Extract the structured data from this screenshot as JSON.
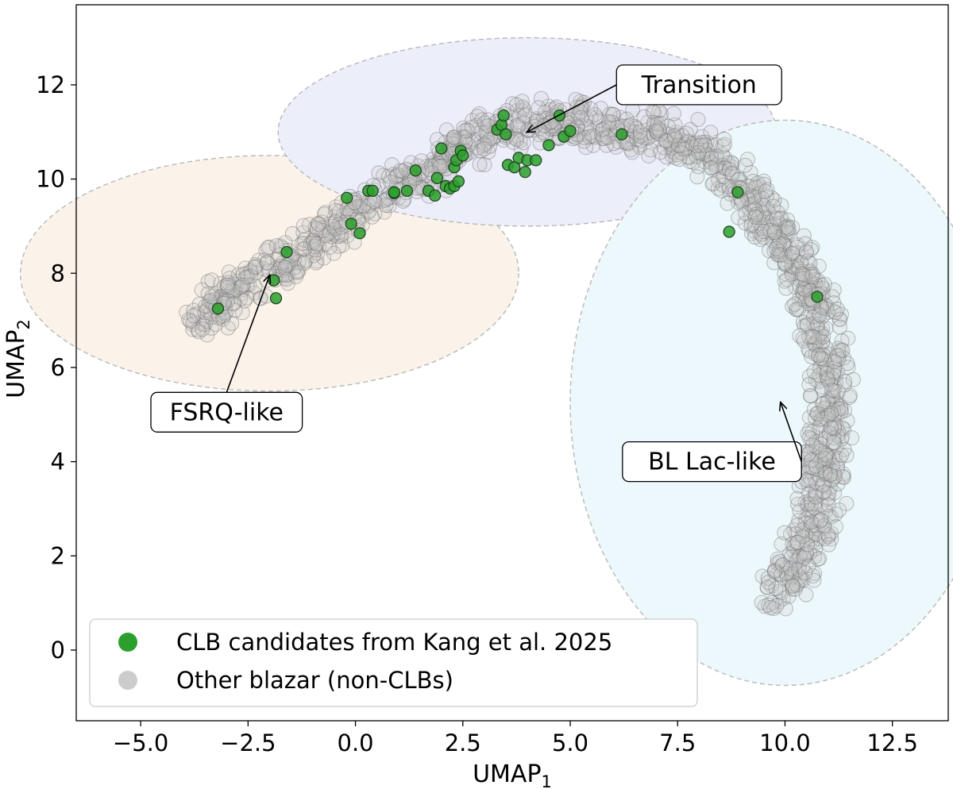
{
  "chart_data": {
    "type": "scatter",
    "title": "",
    "xlabel": "UMAP",
    "xlabel_sub": "1",
    "ylabel": "UMAP",
    "ylabel_sub": "2",
    "xlim": [
      -6.5,
      13.8
    ],
    "ylim": [
      -1.5,
      13.7
    ],
    "xticks": [
      -5.0,
      -2.5,
      0.0,
      2.5,
      5.0,
      7.5,
      10.0,
      12.5
    ],
    "xtick_labels": [
      "−5.0",
      "−2.5",
      "0.0",
      "2.5",
      "5.0",
      "7.5",
      "10.0",
      "12.5"
    ],
    "yticks": [
      0,
      2,
      4,
      6,
      8,
      10,
      12
    ],
    "ytick_labels": [
      "0",
      "2",
      "4",
      "6",
      "8",
      "10",
      "12"
    ],
    "grid": false,
    "legend_position": "bottom-left",
    "legend": [
      {
        "label": "CLB candidates from Kang et al. 2025",
        "color": "#2ca02c"
      },
      {
        "label": "Other blazar (non-CLBs)",
        "color": "#cccccc"
      }
    ],
    "regions": [
      {
        "label": "FSRQ-like",
        "center": [
          -2.0,
          8.0
        ],
        "width": 11.6,
        "height": 5.0,
        "fill": "#fbf3ea",
        "label_at": [
          -3.0,
          5.05
        ],
        "arrow_to": [
          -2.0,
          7.95
        ]
      },
      {
        "label": "Transition",
        "center": [
          4.0,
          11.0
        ],
        "width": 11.6,
        "height": 4.0,
        "fill": "#eceefa",
        "label_at": [
          8.0,
          12.0
        ],
        "arrow_to": [
          4.0,
          11.0
        ]
      },
      {
        "label": "BL Lac-like",
        "center": [
          10.0,
          5.25
        ],
        "width": 10.0,
        "height": 12.0,
        "fill": "#ecf8fb",
        "label_at": [
          8.3,
          4.0
        ],
        "arrow_to": [
          9.9,
          5.25
        ]
      }
    ],
    "background_density": [
      [
        -3.8,
        6.9,
        2
      ],
      [
        -3.0,
        7.5,
        3
      ],
      [
        -2.2,
        7.9,
        3
      ],
      [
        -1.4,
        8.3,
        3
      ],
      [
        -0.6,
        8.9,
        3
      ],
      [
        0.2,
        9.4,
        3
      ],
      [
        1.0,
        9.9,
        3
      ],
      [
        1.8,
        10.3,
        3
      ],
      [
        2.6,
        10.8,
        3
      ],
      [
        3.4,
        11.1,
        3
      ],
      [
        4.2,
        11.2,
        3
      ],
      [
        5.0,
        11.2,
        3
      ],
      [
        5.8,
        11.1,
        3
      ],
      [
        6.6,
        11.0,
        3
      ],
      [
        7.4,
        10.9,
        3
      ],
      [
        8.1,
        10.6,
        3
      ],
      [
        8.7,
        10.1,
        3
      ],
      [
        9.3,
        9.5,
        3
      ],
      [
        9.8,
        8.9,
        3
      ],
      [
        10.3,
        8.2,
        3
      ],
      [
        10.7,
        7.5,
        3
      ],
      [
        10.9,
        6.7,
        3
      ],
      [
        11.0,
        5.9,
        3
      ],
      [
        11.1,
        5.1,
        3
      ],
      [
        11.0,
        4.3,
        3
      ],
      [
        10.9,
        3.5,
        3
      ],
      [
        10.7,
        2.7,
        3
      ],
      [
        10.4,
        2.0,
        3
      ],
      [
        10.0,
        1.4,
        3
      ],
      [
        9.6,
        0.9,
        2
      ]
    ],
    "series": [
      {
        "name": "CLB candidates from Kang et al. 2025",
        "color": "#2ca02c",
        "x": [
          -3.2,
          -1.9,
          -1.85,
          -1.6,
          -0.2,
          -0.1,
          0.1,
          0.3,
          0.4,
          0.9,
          0.9,
          1.2,
          1.4,
          1.7,
          1.85,
          1.9,
          2.0,
          2.1,
          2.2,
          2.3,
          2.3,
          2.35,
          2.4,
          2.45,
          2.5,
          3.3,
          3.4,
          3.45,
          3.5,
          3.55,
          3.7,
          3.8,
          3.95,
          4.0,
          4.2,
          4.5,
          4.75,
          4.85,
          5.0,
          6.2,
          8.7,
          8.9,
          10.75
        ],
        "y": [
          7.25,
          7.85,
          7.47,
          8.45,
          9.6,
          9.05,
          8.85,
          9.75,
          9.75,
          9.7,
          9.72,
          9.75,
          10.18,
          9.75,
          9.65,
          10.02,
          10.65,
          9.85,
          9.8,
          9.85,
          10.25,
          10.4,
          9.95,
          10.6,
          10.5,
          11.05,
          11.15,
          11.35,
          10.95,
          10.3,
          10.25,
          10.45,
          10.15,
          10.4,
          10.4,
          10.72,
          11.35,
          10.9,
          11.02,
          10.95,
          8.88,
          9.72,
          7.5
        ]
      }
    ]
  }
}
